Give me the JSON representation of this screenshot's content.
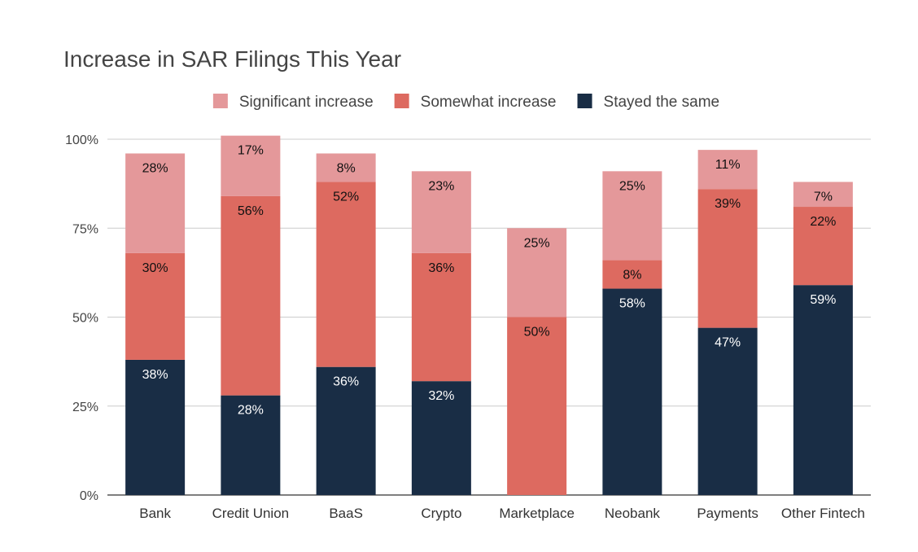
{
  "chart_data": {
    "type": "bar",
    "stacked": true,
    "title": "Increase in SAR Filings This Year",
    "xlabel": "",
    "ylabel": "",
    "ylim": [
      0,
      100
    ],
    "yticks": [
      0,
      25,
      50,
      75,
      100
    ],
    "ytick_labels": [
      "0%",
      "25%",
      "50%",
      "75%",
      "100%"
    ],
    "grid": true,
    "legend_position": "top",
    "categories": [
      "Bank",
      "Credit Union",
      "BaaS",
      "Crypto",
      "Marketplace",
      "Neobank",
      "Payments",
      "Other Fintech"
    ],
    "series": [
      {
        "name": "Stayed the same",
        "color": "#192d45",
        "label_color": "#ffffff",
        "values": [
          38,
          28,
          36,
          32,
          0,
          58,
          47,
          59
        ],
        "labels": [
          "38%",
          "28%",
          "36%",
          "32%",
          "",
          "58%",
          "47%",
          "59%"
        ]
      },
      {
        "name": "Somewhat increase",
        "color": "#dd6a60",
        "label_color": "#111111",
        "values": [
          30,
          56,
          52,
          36,
          50,
          8,
          39,
          22
        ],
        "labels": [
          "30%",
          "56%",
          "52%",
          "36%",
          "50%",
          "8%",
          "39%",
          "22%"
        ]
      },
      {
        "name": "Significant increase",
        "color": "#e4989a",
        "label_color": "#111111",
        "values": [
          28,
          17,
          8,
          23,
          25,
          25,
          11,
          7
        ],
        "labels": [
          "28%",
          "17%",
          "8%",
          "23%",
          "25%",
          "25%",
          "11%",
          "7%"
        ]
      }
    ],
    "legend_order": [
      "Significant increase",
      "Somewhat increase",
      "Stayed the same"
    ]
  }
}
